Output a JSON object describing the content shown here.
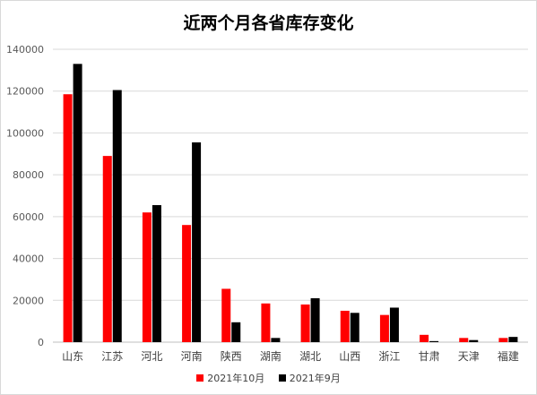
{
  "chart_data": {
    "type": "bar",
    "title": "近两个月各省库存变化",
    "xlabel": "",
    "ylabel": "",
    "ylim": [
      0,
      140000
    ],
    "yticks": [
      "0",
      "20000",
      "40000",
      "60000",
      "80000",
      "100000",
      "120000",
      "140000"
    ],
    "grid": true,
    "legend_position": "bottom",
    "categories": [
      "山东",
      "江苏",
      "河北",
      "河南",
      "陕西",
      "湖南",
      "湖北",
      "山西",
      "浙江",
      "甘肃",
      "天津",
      "福建"
    ],
    "series": [
      {
        "name": "2021年10月",
        "color": "#ff0000",
        "values": [
          118500,
          89000,
          62000,
          56000,
          25500,
          18500,
          18000,
          15000,
          13000,
          3500,
          2000,
          2000
        ]
      },
      {
        "name": "2021年9月",
        "color": "#000000",
        "values": [
          133000,
          120500,
          65500,
          95500,
          9500,
          2000,
          21000,
          14000,
          16500,
          500,
          1000,
          2500
        ]
      }
    ]
  }
}
